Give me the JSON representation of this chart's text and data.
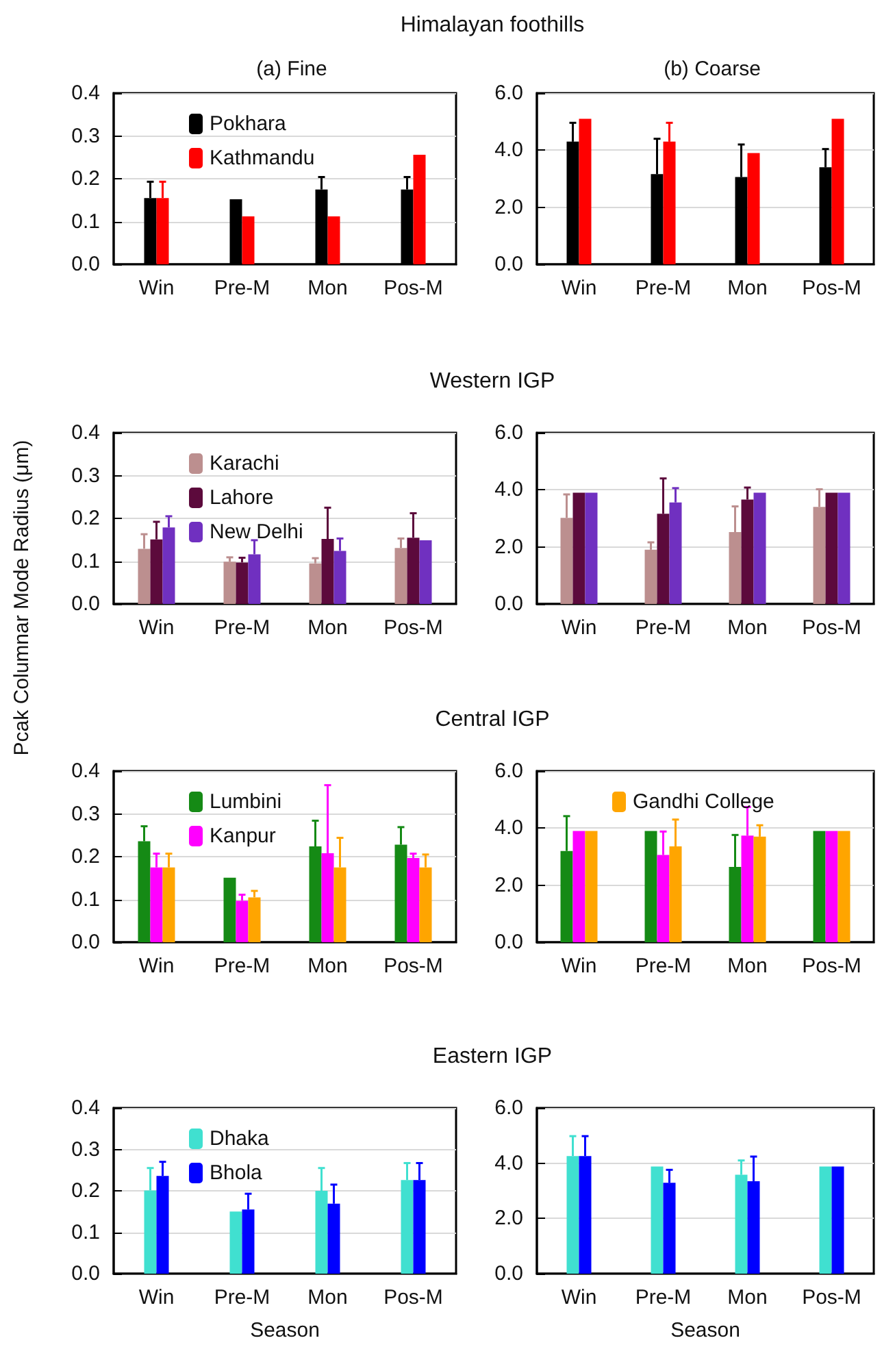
{
  "chart_data": [
    {
      "type": "bar",
      "title": "Himalayan foothills",
      "subtitle": "(a) Fine",
      "categories": [
        "Win",
        "Pre-M",
        "Mon",
        "Pos-M"
      ],
      "ylim": [
        0,
        0.4
      ],
      "yticks": [
        {
          "value": 0,
          "label": "0.0"
        },
        {
          "value": 0.1,
          "label": "0.1"
        },
        {
          "value": 0.2,
          "label": "0.2"
        },
        {
          "value": 0.3,
          "label": "0.3"
        },
        {
          "value": 0.4,
          "label": "0.4"
        }
      ],
      "grid": "y",
      "legend": "top left",
      "series": [
        {
          "name": "Pokhara",
          "color": "#000000",
          "values": [
            0.155,
            0.152,
            0.175,
            0.175
          ],
          "errors": [
            [
              0.155,
              0.193
            ],
            null,
            [
              0.175,
              0.204
            ],
            [
              0.175,
              0.204
            ]
          ]
        },
        {
          "name": "Kathmandu",
          "color": "#ff0000",
          "values": [
            0.155,
            0.112,
            0.112,
            0.256
          ],
          "errors": [
            [
              0.155,
              0.193
            ],
            null,
            null,
            null
          ]
        }
      ]
    },
    {
      "type": "bar",
      "subtitle": "(b) Coarse",
      "categories": [
        "Win",
        "Pre-M",
        "Mon",
        "Pos-M"
      ],
      "ylim": [
        0,
        6
      ],
      "yticks": [
        {
          "value": 0,
          "label": "0.0"
        },
        {
          "value": 2,
          "label": "2.0"
        },
        {
          "value": 4,
          "label": "4.0"
        },
        {
          "value": 6,
          "label": "6.0"
        }
      ],
      "grid": "y",
      "series": [
        {
          "color": "#000000",
          "values": [
            4.3,
            3.16,
            3.06,
            3.4
          ],
          "errors": [
            [
              4.3,
              4.96
            ],
            [
              3.16,
              4.4
            ],
            [
              3.06,
              4.2
            ],
            [
              3.4,
              4.04
            ]
          ]
        },
        {
          "color": "#ff0000",
          "values": [
            5.1,
            4.3,
            3.9,
            5.1
          ],
          "errors": [
            null,
            [
              4.3,
              4.96
            ],
            null,
            null
          ]
        }
      ]
    },
    {
      "type": "bar",
      "title": "Western IGP",
      "ylabel": "Pcak Columnar Mode Radius (μm)",
      "categories": [
        "Win",
        "Pre-M",
        "Mon",
        "Pos-M"
      ],
      "ylim": [
        0,
        0.4
      ],
      "yticks": [
        {
          "value": 0,
          "label": "0.0"
        },
        {
          "value": 0.1,
          "label": "0.1"
        },
        {
          "value": 0.2,
          "label": "0.2"
        },
        {
          "value": 0.3,
          "label": "0.3"
        },
        {
          "value": 0.4,
          "label": "0.4"
        }
      ],
      "grid": "y",
      "legend": "top left",
      "series": [
        {
          "name": "Karachi",
          "color": "#bc8f8f",
          "values": [
            0.129,
            0.099,
            0.095,
            0.131
          ],
          "errors": [
            [
              0.129,
              0.163
            ],
            [
              0.099,
              0.109
            ],
            [
              0.095,
              0.107
            ],
            [
              0.131,
              0.153
            ]
          ]
        },
        {
          "name": "Lahore",
          "color": "#5c0a3c",
          "values": [
            0.151,
            0.097,
            0.152,
            0.155
          ],
          "errors": [
            [
              0.151,
              0.192
            ],
            [
              0.097,
              0.108
            ],
            [
              0.152,
              0.225
            ],
            [
              0.155,
              0.212
            ]
          ]
        },
        {
          "name": "New Delhi",
          "color": "#7030c0",
          "values": [
            0.179,
            0.116,
            0.124,
            0.149
          ],
          "errors": [
            [
              0.179,
              0.205
            ],
            [
              0.116,
              0.149
            ],
            [
              0.124,
              0.153
            ],
            null
          ]
        }
      ]
    },
    {
      "type": "bar",
      "categories": [
        "Win",
        "Pre-M",
        "Mon",
        "Pos-M"
      ],
      "ylim": [
        0,
        6
      ],
      "yticks": [
        {
          "value": 0,
          "label": "0.0"
        },
        {
          "value": 2,
          "label": "2.0"
        },
        {
          "value": 4,
          "label": "4.0"
        },
        {
          "value": 6,
          "label": "6.0"
        }
      ],
      "grid": "y",
      "series": [
        {
          "color": "#bc8f8f",
          "values": [
            3.02,
            1.9,
            2.52,
            3.4
          ],
          "errors": [
            [
              3.02,
              3.84
            ],
            [
              1.9,
              2.16
            ],
            [
              2.52,
              3.42
            ],
            [
              3.4,
              4.02
            ]
          ]
        },
        {
          "color": "#5c0a3c",
          "values": [
            3.9,
            3.16,
            3.66,
            3.9
          ],
          "errors": [
            null,
            [
              3.16,
              4.4
            ],
            [
              3.66,
              4.08
            ],
            null
          ]
        },
        {
          "color": "#7030c0",
          "values": [
            3.9,
            3.56,
            3.9,
            3.9
          ],
          "errors": [
            null,
            [
              3.56,
              4.06
            ],
            null,
            null
          ]
        }
      ]
    },
    {
      "type": "bar",
      "title": "Central IGP",
      "categories": [
        "Win",
        "Pre-M",
        "Mon",
        "Pos-M"
      ],
      "ylim": [
        0,
        0.4
      ],
      "yticks": [
        {
          "value": 0,
          "label": "0.0"
        },
        {
          "value": 0.1,
          "label": "0.1"
        },
        {
          "value": 0.2,
          "label": "0.2"
        },
        {
          "value": 0.3,
          "label": "0.3"
        },
        {
          "value": 0.4,
          "label": "0.4"
        }
      ],
      "grid": "y",
      "legend": "top left",
      "series": [
        {
          "name": "Lumbini",
          "color": "#158a15",
          "values": [
            0.236,
            0.151,
            0.224,
            0.228
          ],
          "errors": [
            [
              0.236,
              0.271
            ],
            null,
            [
              0.224,
              0.284
            ],
            [
              0.228,
              0.269
            ]
          ]
        },
        {
          "name": "Kanpur",
          "color": "#ff00ff",
          "values": [
            0.175,
            0.097,
            0.208,
            0.197
          ],
          "errors": [
            [
              0.175,
              0.207
            ],
            [
              0.097,
              0.111
            ],
            [
              0.208,
              0.367
            ],
            [
              0.197,
              0.207
            ]
          ]
        },
        {
          "color": "#ffa500",
          "values": [
            0.175,
            0.105,
            0.175,
            0.175
          ],
          "errors": [
            [
              0.175,
              0.207
            ],
            [
              0.105,
              0.12
            ],
            [
              0.175,
              0.244
            ],
            [
              0.175,
              0.205
            ]
          ]
        }
      ]
    },
    {
      "type": "bar",
      "categories": [
        "Win",
        "Pre-M",
        "Mon",
        "Pos-M"
      ],
      "ylim": [
        0,
        6
      ],
      "yticks": [
        {
          "value": 0,
          "label": "0.0"
        },
        {
          "value": 2,
          "label": "2.0"
        },
        {
          "value": 4,
          "label": "4.0"
        },
        {
          "value": 6,
          "label": "6.0"
        }
      ],
      "grid": "y",
      "legend": "top left",
      "series": [
        {
          "color": "#158a15",
          "values": [
            3.2,
            3.9,
            2.64,
            3.9
          ],
          "errors": [
            [
              3.2,
              4.42
            ],
            null,
            [
              2.64,
              3.76
            ],
            null
          ]
        },
        {
          "color": "#ff00ff",
          "values": [
            3.9,
            3.06,
            3.74,
            3.9
          ],
          "errors": [
            null,
            [
              3.06,
              3.88
            ],
            [
              3.74,
              4.74
            ],
            null
          ]
        },
        {
          "name": "Gandhi College",
          "color": "#ffa500",
          "values": [
            3.9,
            3.36,
            3.7,
            3.9
          ],
          "errors": [
            null,
            [
              3.36,
              4.3
            ],
            [
              3.7,
              4.1
            ],
            null
          ]
        }
      ]
    },
    {
      "type": "bar",
      "title": "Eastern IGP",
      "xlabel": "Season",
      "categories": [
        "Win",
        "Pre-M",
        "Mon",
        "Pos-M"
      ],
      "ylim": [
        0,
        0.4
      ],
      "yticks": [
        {
          "value": 0,
          "label": "0.0"
        },
        {
          "value": 0.1,
          "label": "0.1"
        },
        {
          "value": 0.2,
          "label": "0.2"
        },
        {
          "value": 0.3,
          "label": "0.3"
        },
        {
          "value": 0.4,
          "label": "0.4"
        }
      ],
      "grid": "y",
      "legend": "top left",
      "series": [
        {
          "name": "Dhaka",
          "color": "#40e0d0",
          "values": [
            0.201,
            0.15,
            0.2,
            0.226
          ],
          "errors": [
            [
              0.201,
              0.255
            ],
            null,
            [
              0.2,
              0.255
            ],
            [
              0.226,
              0.267
            ]
          ]
        },
        {
          "name": "Bhola",
          "color": "#0000ff",
          "values": [
            0.236,
            0.155,
            0.169,
            0.226
          ],
          "errors": [
            [
              0.236,
              0.27
            ],
            [
              0.155,
              0.193
            ],
            [
              0.169,
              0.215
            ],
            [
              0.226,
              0.267
            ]
          ]
        }
      ]
    },
    {
      "type": "bar",
      "xlabel": "Season",
      "categories": [
        "Win",
        "Pre-M",
        "Mon",
        "Pos-M"
      ],
      "ylim": [
        0,
        6
      ],
      "yticks": [
        {
          "value": 0,
          "label": "0.0"
        },
        {
          "value": 2,
          "label": "2.0"
        },
        {
          "value": 4,
          "label": "4.0"
        },
        {
          "value": 6,
          "label": "6.0"
        }
      ],
      "grid": "y",
      "series": [
        {
          "color": "#40e0d0",
          "values": [
            4.26,
            3.88,
            3.58,
            3.88
          ],
          "errors": [
            [
              4.26,
              4.98
            ],
            null,
            [
              3.58,
              4.1
            ],
            null
          ]
        },
        {
          "color": "#0000ff",
          "values": [
            4.26,
            3.29,
            3.35,
            3.88
          ],
          "errors": [
            [
              4.26,
              4.98
            ],
            [
              3.29,
              3.76
            ],
            [
              3.35,
              4.24
            ],
            null
          ]
        }
      ]
    }
  ]
}
